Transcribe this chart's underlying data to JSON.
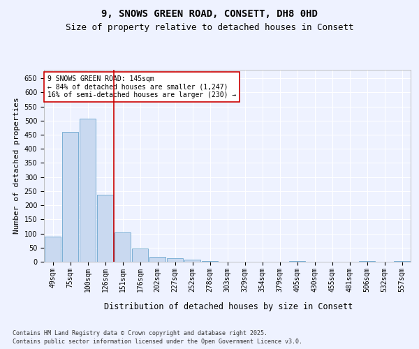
{
  "title_line1": "9, SNOWS GREEN ROAD, CONSETT, DH8 0HD",
  "title_line2": "Size of property relative to detached houses in Consett",
  "xlabel": "Distribution of detached houses by size in Consett",
  "ylabel": "Number of detached properties",
  "categories": [
    "49sqm",
    "75sqm",
    "100sqm",
    "126sqm",
    "151sqm",
    "176sqm",
    "202sqm",
    "227sqm",
    "252sqm",
    "278sqm",
    "303sqm",
    "329sqm",
    "354sqm",
    "379sqm",
    "405sqm",
    "430sqm",
    "455sqm",
    "481sqm",
    "506sqm",
    "532sqm",
    "557sqm"
  ],
  "values": [
    88,
    460,
    507,
    238,
    104,
    48,
    18,
    13,
    8,
    2,
    0,
    0,
    0,
    0,
    3,
    0,
    0,
    0,
    2,
    0,
    2
  ],
  "bar_color": "#c9d9f0",
  "bar_edge_color": "#7bafd4",
  "vline_color": "#cc0000",
  "annotation_text": "9 SNOWS GREEN ROAD: 145sqm\n← 84% of detached houses are smaller (1,247)\n16% of semi-detached houses are larger (230) →",
  "ylim": [
    0,
    680
  ],
  "yticks": [
    0,
    50,
    100,
    150,
    200,
    250,
    300,
    350,
    400,
    450,
    500,
    550,
    600,
    650
  ],
  "background_color": "#eef2ff",
  "plot_bg_color": "#eef2ff",
  "footer_line1": "Contains HM Land Registry data © Crown copyright and database right 2025.",
  "footer_line2": "Contains public sector information licensed under the Open Government Licence v3.0.",
  "grid_color": "#ffffff",
  "title_fontsize": 10,
  "subtitle_fontsize": 9,
  "axis_label_fontsize": 8,
  "tick_fontsize": 7,
  "annotation_fontsize": 7,
  "footer_fontsize": 6
}
